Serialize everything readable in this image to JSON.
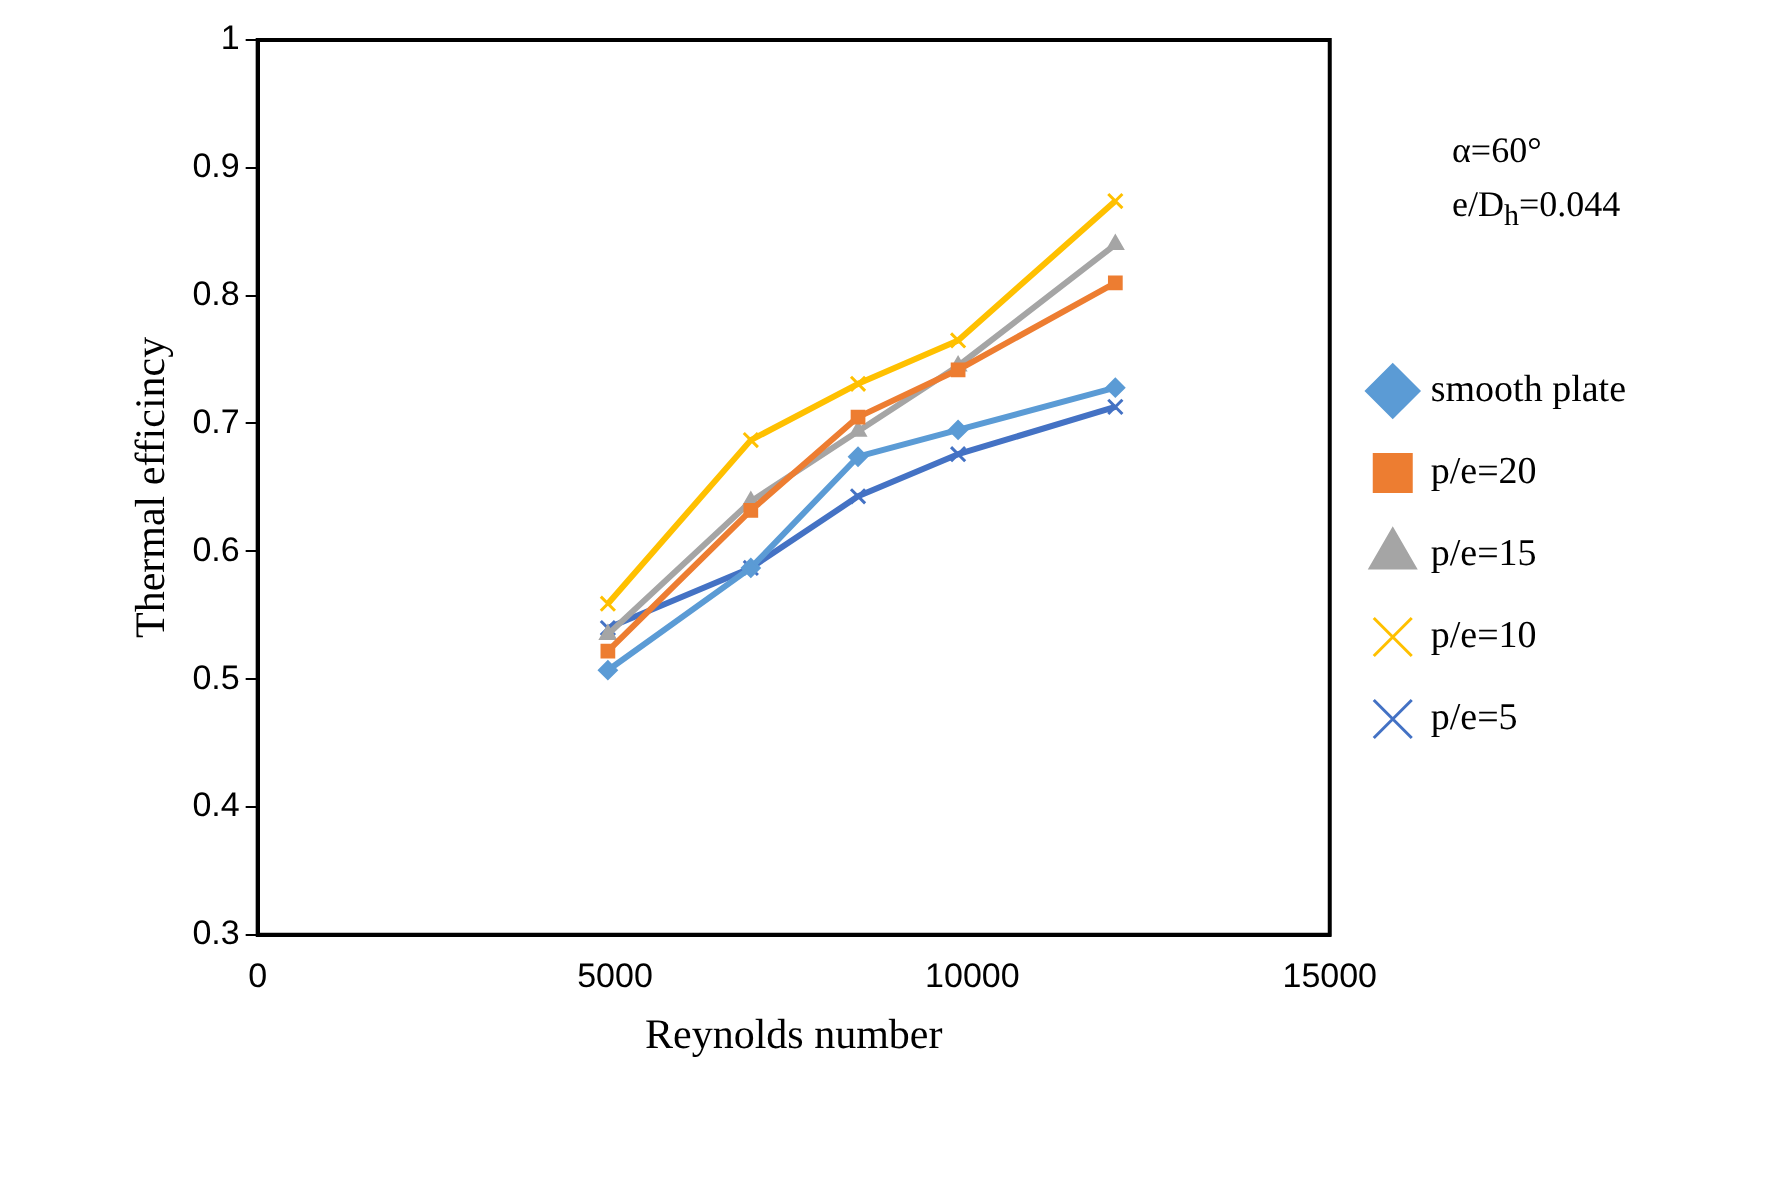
{
  "chart_data": {
    "type": "line",
    "xlabel": "Reynolds number",
    "ylabel": "Thermal efficincy",
    "annotations": [
      "α=60°",
      "e/D$_{h}$=0.044"
    ],
    "xlim": [
      0,
      15000
    ],
    "xticks": [
      0,
      5000,
      10000,
      15000
    ],
    "ylim": [
      0.3,
      1
    ],
    "yticks": [
      0.3,
      0.4,
      0.5,
      0.6,
      0.7,
      0.8,
      0.9,
      1
    ],
    "grid": false,
    "legend": "right",
    "series": [
      {
        "name": "smooth plate",
        "color": "#5b9bd5",
        "marker": "diamond",
        "x": [
          4900,
          6900,
          8400,
          9800,
          12000
        ],
        "values": [
          0.507,
          0.587,
          0.674,
          0.695,
          0.728
        ]
      },
      {
        "name": "p/e=20",
        "color": "#ed7d31",
        "marker": "square",
        "x": [
          4900,
          6900,
          8400,
          9800,
          12000
        ],
        "values": [
          0.522,
          0.632,
          0.705,
          0.742,
          0.81
        ]
      },
      {
        "name": "p/e=15",
        "color": "#a5a5a5",
        "marker": "triangle",
        "x": [
          4900,
          6900,
          8400,
          9800,
          12000
        ],
        "values": [
          0.535,
          0.639,
          0.694,
          0.745,
          0.84
        ]
      },
      {
        "name": "p/e=10",
        "color": "#ffc000",
        "marker": "cross",
        "x": [
          4900,
          6900,
          8400,
          9800,
          12000
        ],
        "values": [
          0.559,
          0.687,
          0.731,
          0.765,
          0.874
        ]
      },
      {
        "name": "p/e=5",
        "color": "#4472c4",
        "marker": "cross",
        "x": [
          4900,
          6900,
          8400,
          9800,
          12000
        ],
        "values": [
          0.54,
          0.587,
          0.643,
          0.676,
          0.713
        ]
      }
    ]
  }
}
